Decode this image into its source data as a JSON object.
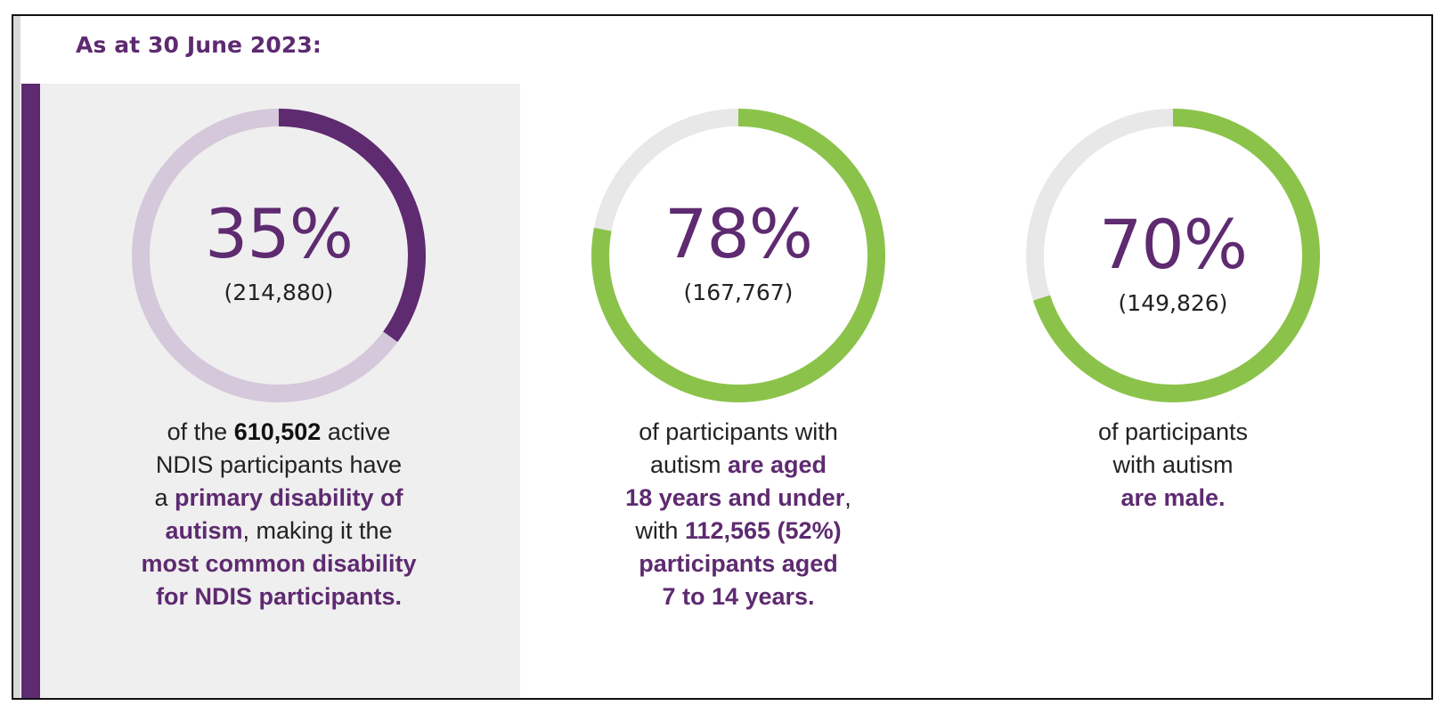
{
  "header": {
    "title": "As at 30 June 2023:"
  },
  "colors": {
    "purple": "#5e2a70",
    "purple_light": "#d4c8da",
    "green": "#8bc34a",
    "track_grey": "#e8e8e8",
    "panel_grey": "#efefef"
  },
  "chart_data": [
    {
      "type": "pie",
      "value": 35,
      "value_label": "35%",
      "count_label": "(214,880)",
      "color": "#5e2a70",
      "track_color": "#d4c8da",
      "description": {
        "l1a": "of the ",
        "l1b": "610,502",
        "l1c": " active",
        "l2": "NDIS participants have",
        "l3a": "a ",
        "l3b": "primary disability of",
        "l4a": "autism",
        "l4b": ", making it the",
        "l5": "most common disability",
        "l6": "for NDIS participants."
      }
    },
    {
      "type": "pie",
      "value": 78,
      "value_label": "78%",
      "count_label": "(167,767)",
      "color": "#8bc34a",
      "track_color": "#e8e8e8",
      "description": {
        "l1": "of participants with",
        "l2a": "autism ",
        "l2b": "are aged",
        "l3a": "18 years and under",
        "l3b": ",",
        "l4a": "with ",
        "l4b": "112,565 (52%)",
        "l5": "participants aged",
        "l6": "7 to 14 years."
      }
    },
    {
      "type": "pie",
      "value": 70,
      "value_label": "70%",
      "count_label": "(149,826)",
      "color": "#8bc34a",
      "track_color": "#e8e8e8",
      "description": {
        "l1": "of participants",
        "l2": "with autism",
        "l3": "are male."
      }
    }
  ]
}
